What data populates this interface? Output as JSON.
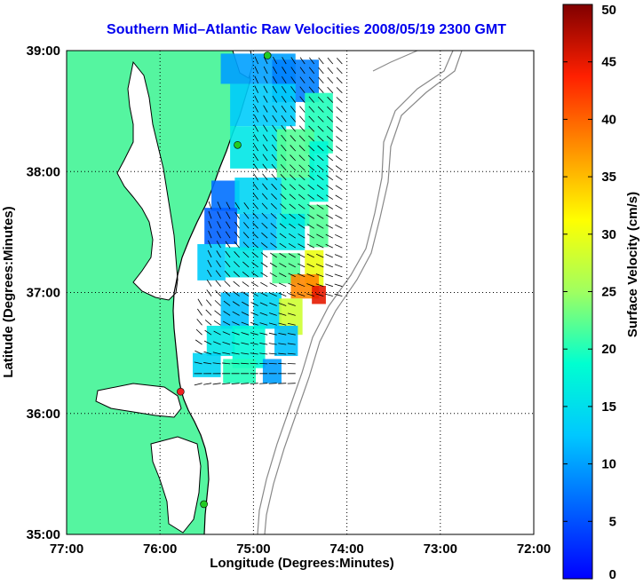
{
  "chart_data": {
    "type": "heatmap",
    "title": "Southern Mid–Atlantic Raw Velocities 2008/05/19 2300 GMT",
    "xlabel": "Longitude (Degrees:Minutes)",
    "ylabel": "Latitude (Degrees:Minutes)",
    "xlim": [
      -77,
      -72
    ],
    "ylim": [
      35,
      39
    ],
    "x_ticks": [
      {
        "value": -77,
        "label": "77:00"
      },
      {
        "value": -76,
        "label": "76:00"
      },
      {
        "value": -75,
        "label": "75:00"
      },
      {
        "value": -74,
        "label": "74:00"
      },
      {
        "value": -73,
        "label": "73:00"
      },
      {
        "value": -72,
        "label": "72:00"
      }
    ],
    "y_ticks": [
      {
        "value": 35,
        "label": "35:00"
      },
      {
        "value": 36,
        "label": "36:00"
      },
      {
        "value": 37,
        "label": "37:00"
      },
      {
        "value": 38,
        "label": "38:00"
      },
      {
        "value": 39,
        "label": "39:00"
      }
    ],
    "grid": true,
    "colorbar": {
      "label": "Surface Velocity (cm/s)",
      "range": [
        0,
        50
      ],
      "ticks": [
        {
          "value": 0,
          "label": "0"
        },
        {
          "value": 5,
          "label": "5"
        },
        {
          "value": 10,
          "label": "10"
        },
        {
          "value": 15,
          "label": "15"
        },
        {
          "value": 20,
          "label": "20"
        },
        {
          "value": 25,
          "label": "25"
        },
        {
          "value": 30,
          "label": "30"
        },
        {
          "value": 35,
          "label": "35"
        },
        {
          "value": 40,
          "label": "40"
        },
        {
          "value": 45,
          "label": "45"
        },
        {
          "value": 50,
          "label": "50"
        }
      ],
      "colormap": "jet"
    },
    "stations": [
      {
        "lon": -74.85,
        "lat": 38.96,
        "color": "#22cc22"
      },
      {
        "lon": -75.17,
        "lat": 38.22,
        "color": "#22cc22"
      },
      {
        "lon": -75.78,
        "lat": 36.18,
        "color": "#ee2222"
      },
      {
        "lon": -75.53,
        "lat": 35.25,
        "color": "#22cc22"
      }
    ],
    "colors": {
      "land": "#55f5a0",
      "water": "#ffffff",
      "bathymetry": "#888888"
    }
  }
}
